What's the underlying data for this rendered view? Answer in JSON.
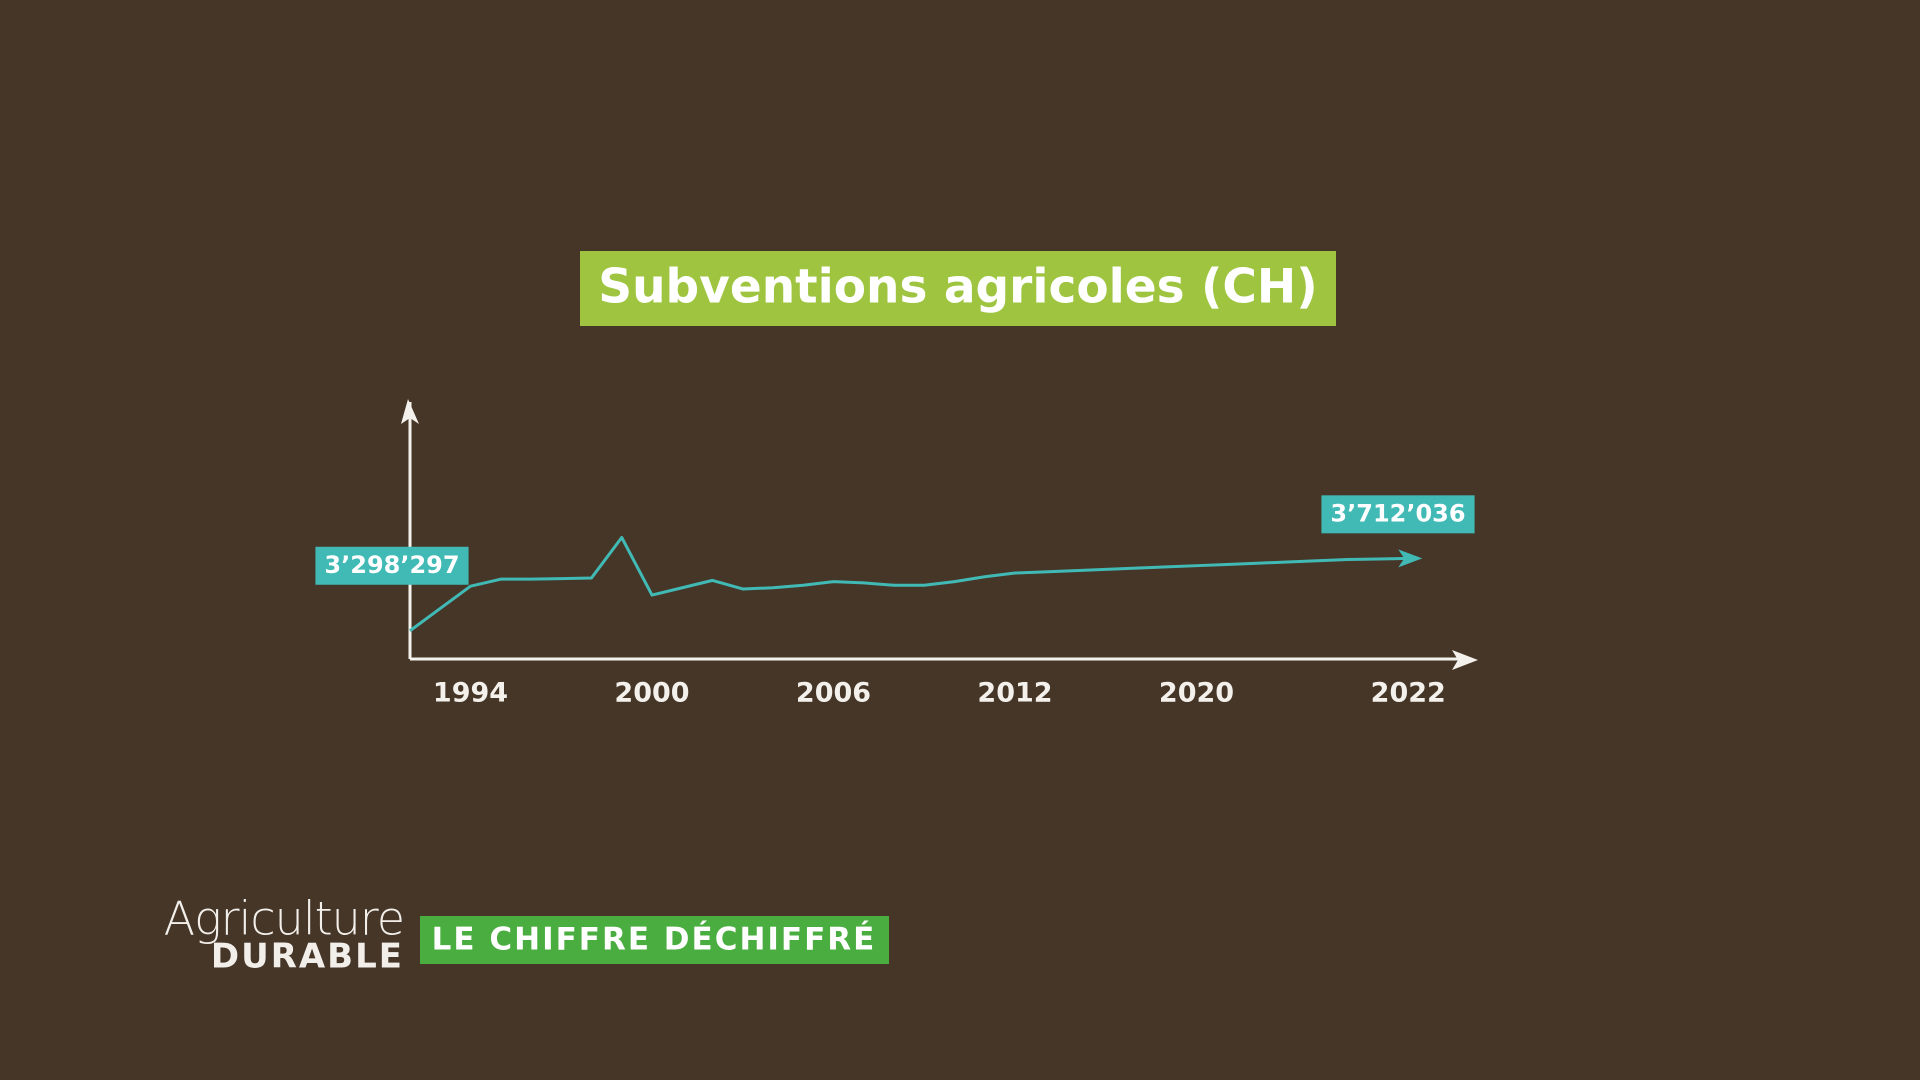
{
  "chart_data": {
    "type": "line",
    "title": "Subventions agricoles (CH)",
    "categories": [
      null,
      null,
      "1994",
      null,
      null,
      null,
      null,
      null,
      "2000",
      null,
      null,
      null,
      null,
      null,
      "2006",
      null,
      null,
      null,
      null,
      null,
      "2012",
      null,
      null,
      null,
      null,
      null,
      "2020",
      null,
      null,
      null,
      null,
      null,
      null,
      "2022"
    ],
    "values": [
      3298297,
      3426000,
      3553000,
      3593000,
      3593000,
      3596000,
      3600000,
      3831000,
      3502000,
      3544000,
      3586000,
      3537000,
      3544000,
      3558000,
      3579000,
      3572000,
      3558000,
      3558000,
      3579000,
      3607000,
      3628000,
      3635000,
      3642000,
      3649000,
      3656000,
      3663000,
      3670000,
      3677000,
      3684000,
      3691000,
      3698000,
      3705000,
      3708000,
      3712036
    ],
    "value_labels": [
      "3’298’297",
      null,
      null,
      null,
      null,
      null,
      null,
      null,
      null,
      null,
      null,
      null,
      null,
      null,
      null,
      null,
      null,
      null,
      null,
      null,
      null,
      null,
      null,
      null,
      null,
      null,
      null,
      null,
      null,
      null,
      null,
      null,
      null,
      "3’712’036"
    ],
    "color": "#41bab6",
    "ylim": [
      3137000,
      4525000
    ]
  },
  "brand": {
    "name": "Agriculture",
    "sub": "DURABLE",
    "tag": "LE CHIFFRE DÉCHIFFRÉ"
  }
}
